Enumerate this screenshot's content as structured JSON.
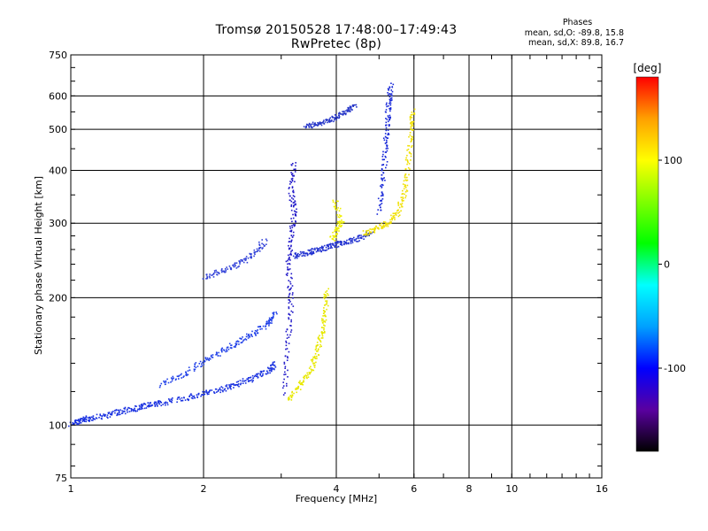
{
  "chart_data": {
    "type": "scatter",
    "title": "Tromsø 20150528 17:48:00–17:49:43",
    "subtitle": "RwPretec (8p)",
    "xlabel": "Frequency [MHz]",
    "ylabel": "Stationary phase Virtual Height [km]",
    "x_scale": "log",
    "y_scale": "log",
    "xlim": [
      1,
      16
    ],
    "ylim": [
      75,
      750
    ],
    "x_ticks": [
      "1",
      "2",
      "4",
      "6",
      "8",
      "10",
      "16"
    ],
    "y_ticks": [
      "75",
      "100",
      "200",
      "300",
      "400",
      "500",
      "600",
      "750"
    ],
    "grid": true,
    "phases_box": {
      "title": "Phases",
      "line1": "mean, sd,O: -89.8, 15.8",
      "line2": "mean, sd,X: 89.8, 16.7"
    },
    "colorbar": {
      "label": "[deg]",
      "ticks": [
        "100",
        "0",
        "-100"
      ],
      "tick_values": [
        100,
        0,
        -100
      ],
      "range": [
        -180,
        180
      ],
      "colors": [
        "#000000",
        "#5a00a0",
        "#0000ff",
        "#00a0ff",
        "#00ffff",
        "#00ff00",
        "#80ff00",
        "#ffff00",
        "#ffa000",
        "#ff0000"
      ]
    },
    "series": [
      {
        "phase": -100,
        "color": "#1830e0",
        "points": [
          [
            1.0,
            101
          ],
          [
            1.05,
            103
          ],
          [
            1.1,
            104
          ],
          [
            1.2,
            106
          ],
          [
            1.3,
            108
          ],
          [
            1.4,
            110
          ],
          [
            1.5,
            112
          ],
          [
            1.6,
            113
          ],
          [
            1.8,
            116
          ],
          [
            2.0,
            119
          ],
          [
            2.2,
            122
          ],
          [
            2.4,
            126
          ],
          [
            2.6,
            130
          ],
          [
            2.8,
            135
          ],
          [
            2.9,
            140
          ]
        ]
      },
      {
        "phase": -105,
        "color": "#2040e8",
        "points": [
          [
            1.6,
            125
          ],
          [
            1.8,
            132
          ],
          [
            2.0,
            142
          ],
          [
            2.2,
            150
          ],
          [
            2.4,
            158
          ],
          [
            2.6,
            166
          ],
          [
            2.8,
            175
          ],
          [
            2.9,
            185
          ]
        ]
      },
      {
        "phase": -110,
        "color": "#3040d8",
        "points": [
          [
            2.0,
            225
          ],
          [
            2.2,
            232
          ],
          [
            2.4,
            242
          ],
          [
            2.6,
            255
          ],
          [
            2.75,
            275
          ]
        ]
      },
      {
        "phase": -120,
        "color": "#2018c8",
        "points": [
          [
            3.05,
            120
          ],
          [
            3.1,
            160
          ],
          [
            3.15,
            200
          ],
          [
            3.1,
            240
          ],
          [
            3.15,
            280
          ],
          [
            3.2,
            320
          ],
          [
            3.15,
            360
          ],
          [
            3.2,
            420
          ]
        ]
      },
      {
        "phase": -115,
        "color": "#2030d0",
        "points": [
          [
            3.2,
            252
          ],
          [
            3.4,
            256
          ],
          [
            3.6,
            260
          ],
          [
            3.8,
            264
          ],
          [
            4.0,
            268
          ],
          [
            4.2,
            272
          ],
          [
            4.5,
            278
          ],
          [
            4.8,
            285
          ]
        ]
      },
      {
        "phase": -110,
        "color": "#2838c8",
        "points": [
          [
            3.4,
            510
          ],
          [
            3.6,
            515
          ],
          [
            3.8,
            525
          ],
          [
            4.0,
            540
          ],
          [
            4.2,
            555
          ],
          [
            4.4,
            570
          ]
        ]
      },
      {
        "phase": -110,
        "color": "#1828d8",
        "points": [
          [
            5.0,
            320
          ],
          [
            5.1,
            380
          ],
          [
            5.15,
            450
          ],
          [
            5.2,
            520
          ],
          [
            5.25,
            580
          ],
          [
            5.3,
            640
          ]
        ]
      },
      {
        "phase": 100,
        "color": "#e8e800",
        "points": [
          [
            3.1,
            115
          ],
          [
            3.3,
            125
          ],
          [
            3.5,
            135
          ],
          [
            3.6,
            150
          ],
          [
            3.7,
            165
          ],
          [
            3.75,
            185
          ],
          [
            3.8,
            210
          ]
        ]
      },
      {
        "phase": 100,
        "color": "#f0f000",
        "points": [
          [
            3.9,
            275
          ],
          [
            4.0,
            290
          ],
          [
            4.1,
            305
          ],
          [
            3.95,
            340
          ]
        ]
      },
      {
        "phase": 105,
        "color": "#f0e000",
        "points": [
          [
            4.6,
            285
          ],
          [
            4.9,
            292
          ],
          [
            5.2,
            300
          ],
          [
            5.5,
            320
          ],
          [
            5.7,
            360
          ],
          [
            5.8,
            420
          ],
          [
            5.9,
            500
          ],
          [
            5.95,
            560
          ]
        ]
      }
    ]
  }
}
